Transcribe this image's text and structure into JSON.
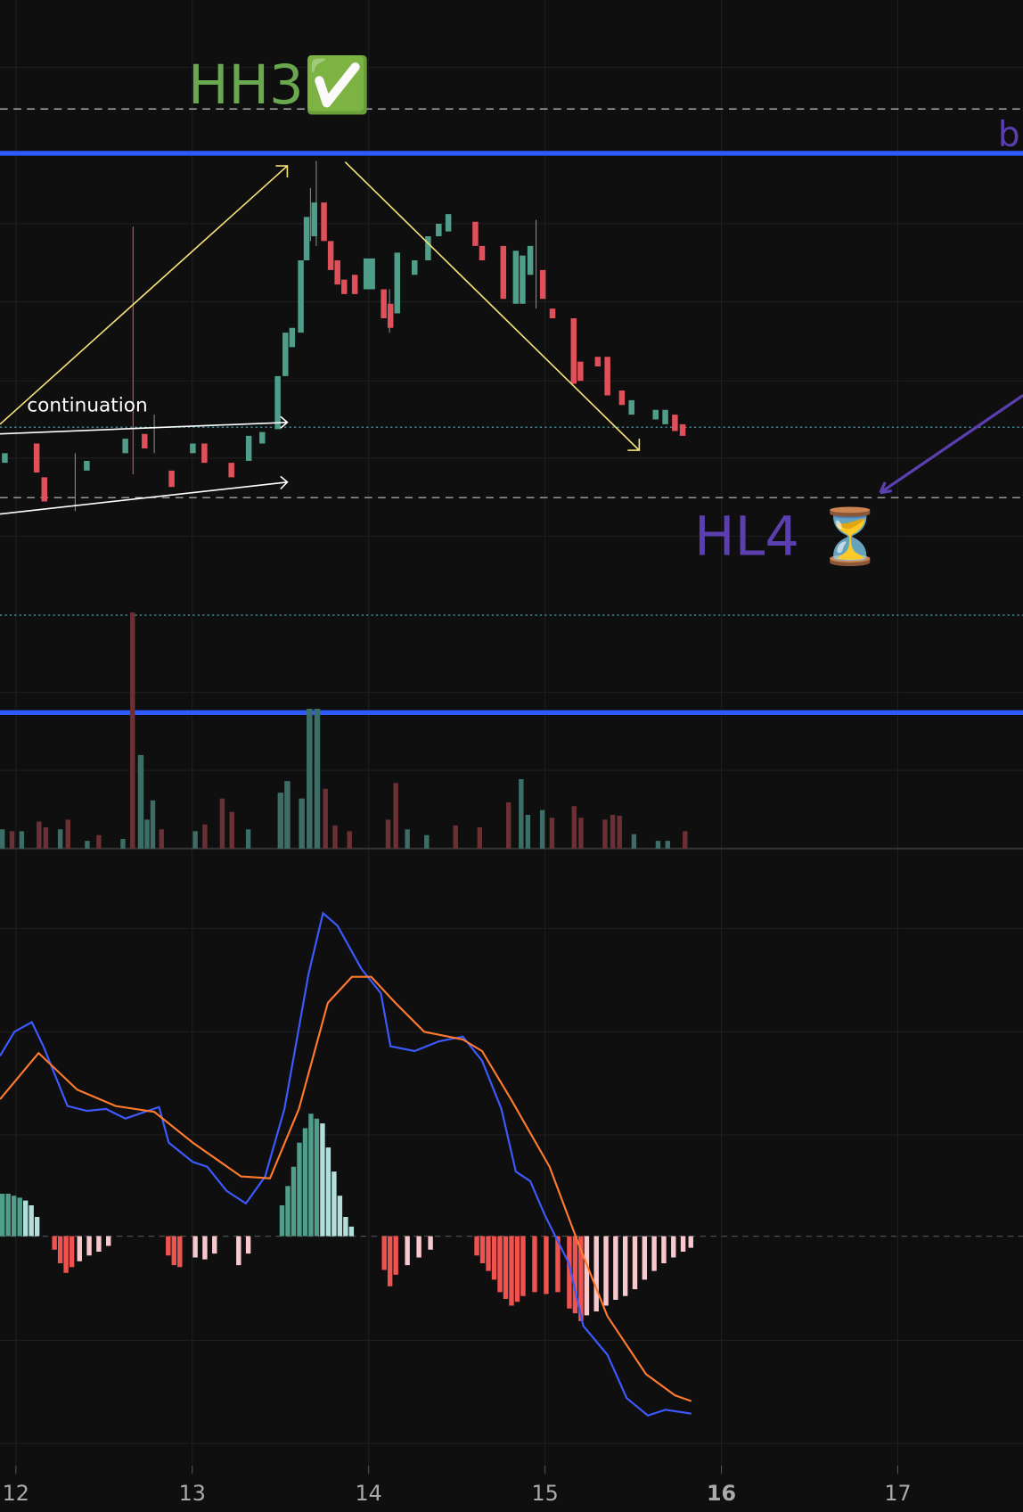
{
  "chart_data": {
    "type": "candlestick",
    "annotations": [
      "HH3✅",
      "b",
      "continuation",
      "HL4 ⏳"
    ],
    "xlim": [
      11.91,
      17.71
    ],
    "xticks": [
      12,
      13,
      14,
      15,
      16,
      17
    ],
    "grid": true
  }
}
